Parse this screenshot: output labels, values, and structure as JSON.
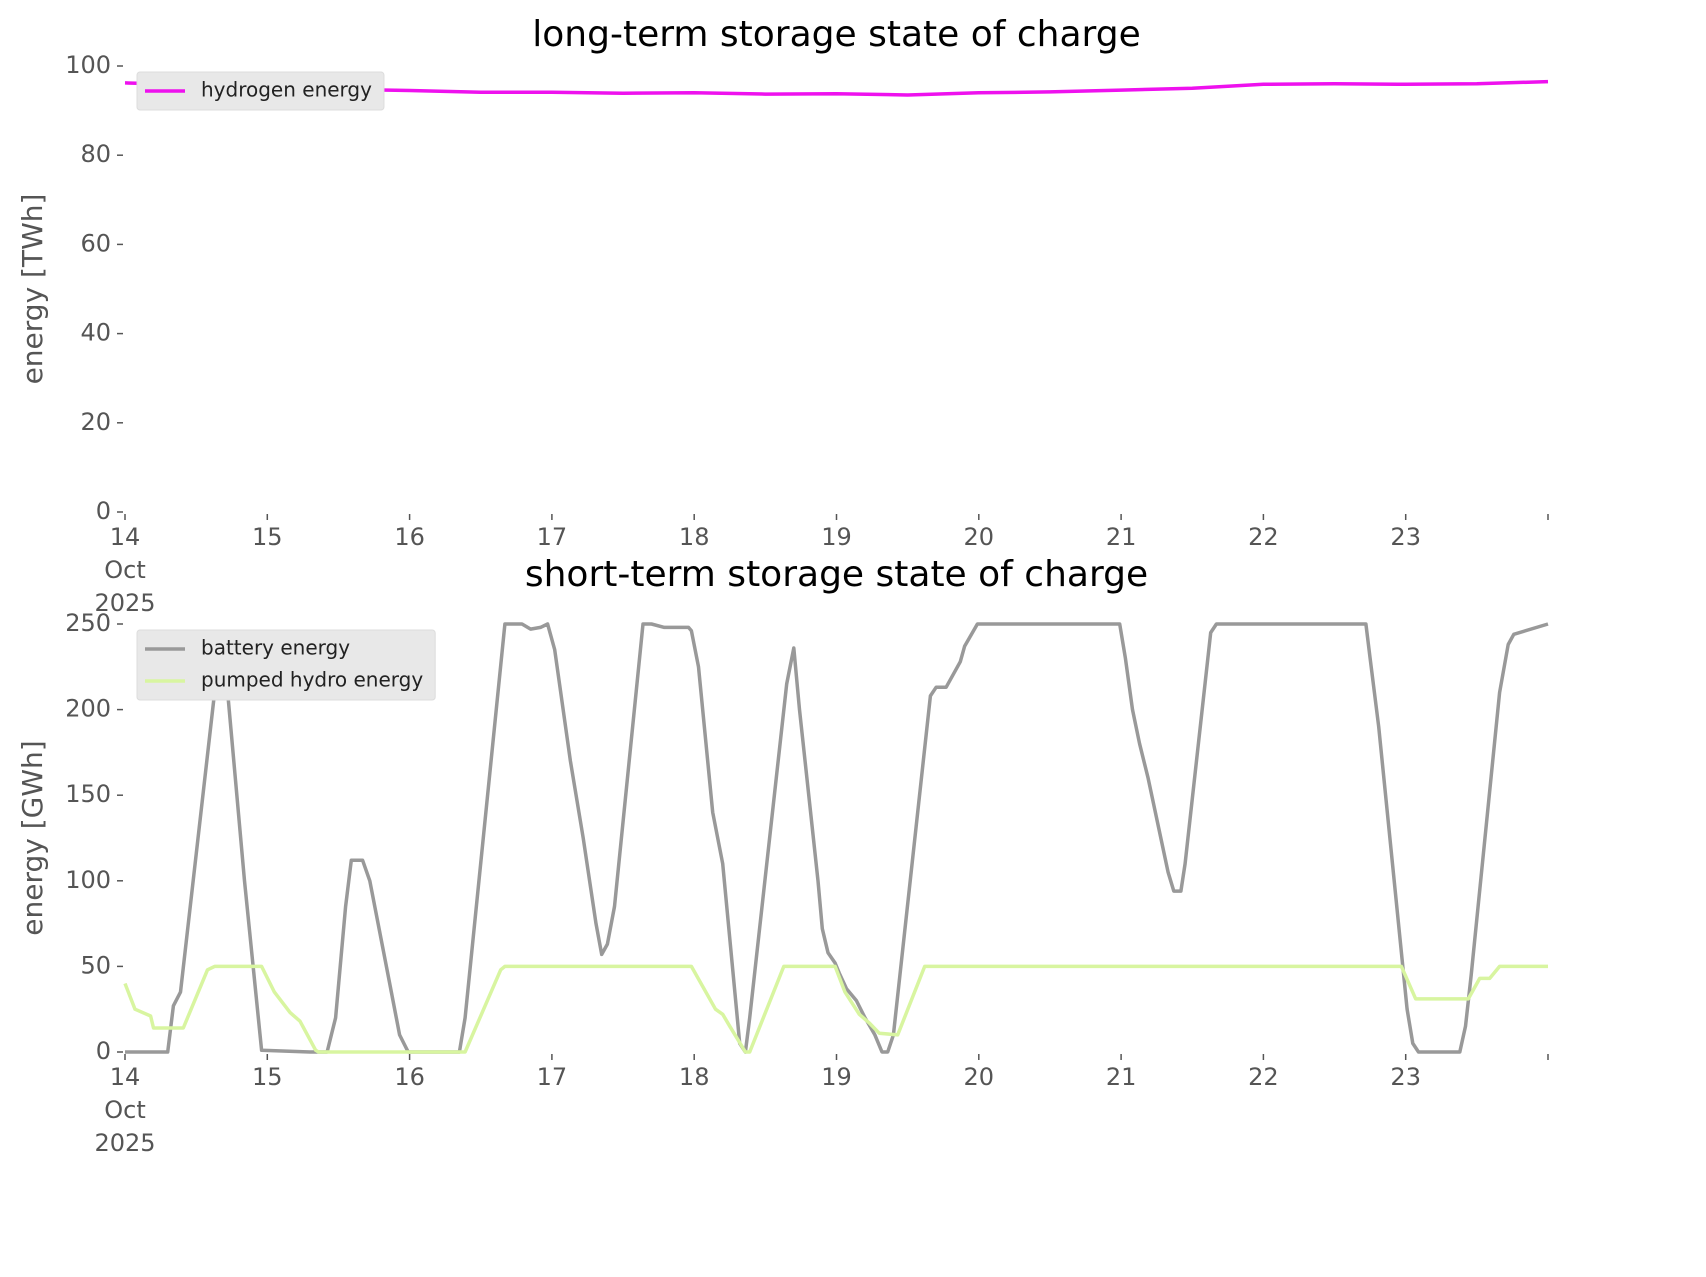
{
  "chart_data": [
    {
      "type": "line",
      "title": "long-term storage state of charge",
      "ylabel": "energy [TWh]",
      "xlim": [
        14,
        24
      ],
      "ylim": [
        0,
        100
      ],
      "xticks": [
        {
          "value": 14,
          "label": "14\nOct\n2025"
        },
        15,
        16,
        17,
        18,
        19,
        20,
        21,
        22,
        23
      ],
      "yticks": [
        0,
        20,
        40,
        60,
        80,
        100
      ],
      "legend": "upper left",
      "series": [
        {
          "name": "hydrogen energy",
          "color": "#ee11ee",
          "x": [
            14,
            14.5,
            15,
            15.5,
            16,
            16.5,
            17,
            17.5,
            18,
            18.5,
            19,
            19.5,
            20,
            20.5,
            21,
            21.5,
            22,
            22.5,
            23,
            23.5,
            24
          ],
          "values": [
            96.2,
            95.8,
            95.3,
            94.8,
            94.5,
            94.1,
            94.1,
            93.9,
            94.0,
            93.7,
            93.8,
            93.5,
            94.0,
            94.2,
            94.6,
            95.0,
            95.9,
            96.0,
            95.9,
            96.0,
            96.5
          ]
        }
      ]
    },
    {
      "type": "line",
      "title": "short-term storage state of charge",
      "ylabel": "energy [GWh]",
      "xlim": [
        14,
        24
      ],
      "ylim": [
        0,
        250
      ],
      "xticks": [
        {
          "value": 14,
          "label": "14\nOct\n2025"
        },
        15,
        16,
        17,
        18,
        19,
        20,
        21,
        22,
        23
      ],
      "yticks": [
        0,
        50,
        100,
        150,
        200,
        250
      ],
      "legend": "upper left",
      "series": [
        {
          "name": "battery energy",
          "color": "#999999",
          "x": [
            14,
            14.3,
            14.34,
            14.39,
            14.63,
            14.67,
            14.7,
            14.84,
            14.96,
            15.3,
            15.42,
            15.48,
            15.55,
            15.59,
            15.67,
            15.72,
            15.86,
            15.93,
            15.99,
            16.35,
            16.39,
            16.67,
            16.79,
            16.85,
            16.92,
            16.97,
            17.02,
            17.13,
            17.22,
            17.31,
            17.35,
            17.39,
            17.44,
            17.64,
            17.7,
            17.79,
            17.96,
            17.98,
            18.03,
            18.13,
            18.2,
            18.32,
            18.36,
            18.39,
            18.65,
            18.7,
            18.74,
            18.87,
            18.9,
            18.94,
            18.99,
            19.02,
            19.07,
            19.14,
            19.2,
            19.27,
            19.32,
            19.36,
            19.4,
            19.66,
            19.7,
            19.77,
            19.87,
            19.9,
            19.99,
            20.99,
            21.03,
            21.08,
            21.13,
            21.19,
            21.33,
            21.37,
            21.42,
            21.45,
            21.63,
            21.67,
            22.72,
            22.75,
            22.81,
            23.01,
            23.05,
            23.09,
            23.38,
            23.42,
            23.46,
            23.66,
            23.72,
            23.76,
            24
          ],
          "values": [
            0,
            0,
            27,
            35,
            210,
            238,
            230,
            100,
            1,
            0,
            0,
            20,
            85,
            112,
            112,
            100,
            40,
            10,
            0,
            0,
            20,
            250,
            250,
            247,
            248,
            250,
            235,
            170,
            125,
            75,
            57,
            63,
            85,
            250,
            250,
            248,
            248,
            246,
            225,
            140,
            110,
            5,
            0,
            20,
            215,
            236,
            200,
            100,
            72,
            58,
            52,
            46,
            37,
            30,
            20,
            10,
            0,
            0,
            10,
            208,
            213,
            213,
            228,
            237,
            250,
            250,
            230,
            200,
            180,
            160,
            105,
            94,
            94,
            110,
            245,
            250,
            250,
            230,
            190,
            25,
            5,
            0,
            0,
            15,
            45,
            210,
            238,
            244,
            250
          ]
        },
        {
          "name": "pumped hydro energy",
          "color": "#d8f5a0",
          "x": [
            14,
            14.07,
            14.18,
            14.2,
            14.41,
            14.58,
            14.63,
            14.96,
            15.05,
            15.16,
            15.23,
            15.34,
            15.36,
            16.39,
            16.64,
            16.67,
            17.98,
            18.15,
            18.2,
            18.25,
            18.36,
            18.39,
            18.63,
            18.99,
            19.06,
            19.16,
            19.23,
            19.3,
            19.43,
            19.62,
            22.97,
            23.07,
            23.44,
            23.52,
            23.59,
            23.66,
            24
          ],
          "values": [
            40,
            25,
            21,
            14,
            14,
            48,
            50,
            50,
            35,
            23,
            18,
            1,
            0,
            0,
            48,
            50,
            50,
            25,
            22,
            15,
            0,
            0,
            50,
            50,
            35,
            22,
            17,
            11,
            10,
            50,
            50,
            31,
            31,
            43,
            43,
            50,
            50
          ]
        }
      ]
    }
  ]
}
